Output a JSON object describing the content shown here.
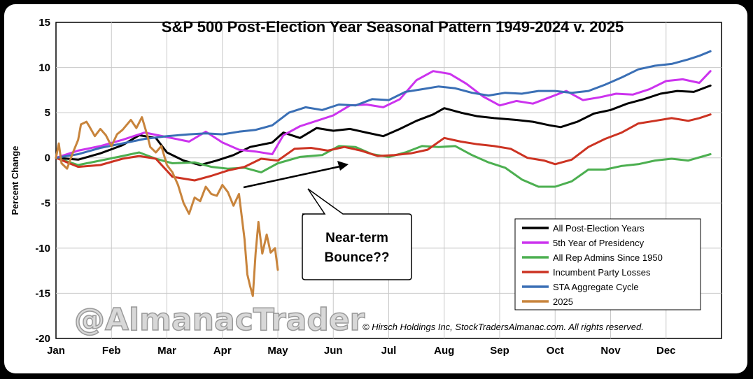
{
  "chart_data": {
    "type": "line",
    "title": "S&P 500 Post-Election Year Seasonal Pattern 1949-2024 v. 2025",
    "ylabel": "Percent Change",
    "xlabel": "",
    "ylim": [
      -20,
      15
    ],
    "yticks": [
      "15",
      "10",
      "5",
      "0",
      "-5",
      "-10",
      "-15",
      "-20"
    ],
    "xticks": [
      "Jan",
      "Feb",
      "Mar",
      "Apr",
      "May",
      "Jun",
      "Jul",
      "Aug",
      "Sep",
      "Oct",
      "Nov",
      "Dec"
    ],
    "grid": true,
    "legend_position": "bottom-right",
    "series": [
      {
        "name": "All Post-Election Years",
        "color": "#000000",
        "points": [
          [
            0,
            0
          ],
          [
            0.4,
            -0.2
          ],
          [
            0.8,
            0.5
          ],
          [
            1.2,
            1.4
          ],
          [
            1.5,
            2.5
          ],
          [
            1.8,
            2.2
          ],
          [
            2.0,
            0.6
          ],
          [
            2.3,
            -0.3
          ],
          [
            2.6,
            -0.8
          ],
          [
            2.9,
            -0.3
          ],
          [
            3.2,
            0.3
          ],
          [
            3.5,
            1.2
          ],
          [
            3.9,
            1.7
          ],
          [
            4.1,
            2.8
          ],
          [
            4.4,
            2.2
          ],
          [
            4.7,
            3.3
          ],
          [
            5.0,
            3.0
          ],
          [
            5.3,
            3.2
          ],
          [
            5.6,
            2.8
          ],
          [
            5.9,
            2.4
          ],
          [
            6.2,
            3.2
          ],
          [
            6.5,
            4.1
          ],
          [
            6.8,
            4.8
          ],
          [
            7.0,
            5.5
          ],
          [
            7.3,
            5.0
          ],
          [
            7.6,
            4.6
          ],
          [
            7.9,
            4.4
          ],
          [
            8.3,
            4.2
          ],
          [
            8.6,
            4.0
          ],
          [
            8.9,
            3.6
          ],
          [
            9.1,
            3.4
          ],
          [
            9.4,
            4.0
          ],
          [
            9.7,
            4.9
          ],
          [
            10.0,
            5.3
          ],
          [
            10.3,
            6.0
          ],
          [
            10.6,
            6.5
          ],
          [
            10.9,
            7.1
          ],
          [
            11.2,
            7.4
          ],
          [
            11.5,
            7.3
          ],
          [
            11.8,
            8.0
          ]
        ]
      },
      {
        "name": "5th Year of Presidency",
        "color": "#cc33ee",
        "points": [
          [
            0,
            0
          ],
          [
            0.4,
            0.8
          ],
          [
            0.8,
            1.3
          ],
          [
            1.2,
            2.0
          ],
          [
            1.6,
            2.8
          ],
          [
            2.0,
            2.3
          ],
          [
            2.4,
            1.8
          ],
          [
            2.7,
            2.9
          ],
          [
            3.0,
            1.7
          ],
          [
            3.3,
            0.9
          ],
          [
            3.6,
            0.7
          ],
          [
            3.9,
            0.4
          ],
          [
            4.1,
            2.5
          ],
          [
            4.4,
            3.5
          ],
          [
            4.7,
            4.1
          ],
          [
            5.0,
            4.7
          ],
          [
            5.3,
            5.8
          ],
          [
            5.6,
            5.9
          ],
          [
            5.9,
            5.6
          ],
          [
            6.2,
            6.5
          ],
          [
            6.5,
            8.6
          ],
          [
            6.8,
            9.6
          ],
          [
            7.1,
            9.3
          ],
          [
            7.4,
            8.2
          ],
          [
            7.7,
            6.8
          ],
          [
            8.0,
            5.8
          ],
          [
            8.3,
            6.3
          ],
          [
            8.6,
            6.0
          ],
          [
            8.9,
            6.7
          ],
          [
            9.2,
            7.4
          ],
          [
            9.5,
            6.4
          ],
          [
            9.8,
            6.7
          ],
          [
            10.1,
            7.1
          ],
          [
            10.4,
            7.0
          ],
          [
            10.7,
            7.6
          ],
          [
            11.0,
            8.5
          ],
          [
            11.3,
            8.7
          ],
          [
            11.6,
            8.3
          ],
          [
            11.8,
            9.6
          ]
        ]
      },
      {
        "name": "All Rep Admins Since 1950",
        "color": "#4caf50",
        "points": [
          [
            0,
            0
          ],
          [
            0.4,
            -0.8
          ],
          [
            0.8,
            -0.3
          ],
          [
            1.2,
            0.2
          ],
          [
            1.5,
            0.6
          ],
          [
            1.8,
            -0.1
          ],
          [
            2.1,
            -0.6
          ],
          [
            2.5,
            -0.5
          ],
          [
            2.8,
            -1.0
          ],
          [
            3.1,
            -1.2
          ],
          [
            3.4,
            -1.1
          ],
          [
            3.7,
            -1.6
          ],
          [
            4.0,
            -0.6
          ],
          [
            4.4,
            0.1
          ],
          [
            4.8,
            0.3
          ],
          [
            5.1,
            1.3
          ],
          [
            5.4,
            1.2
          ],
          [
            5.7,
            0.4
          ],
          [
            6.0,
            0.1
          ],
          [
            6.3,
            0.6
          ],
          [
            6.6,
            1.3
          ],
          [
            6.9,
            1.2
          ],
          [
            7.2,
            1.3
          ],
          [
            7.5,
            0.3
          ],
          [
            7.8,
            -0.5
          ],
          [
            8.1,
            -1.1
          ],
          [
            8.4,
            -2.4
          ],
          [
            8.7,
            -3.2
          ],
          [
            9.0,
            -3.2
          ],
          [
            9.3,
            -2.6
          ],
          [
            9.6,
            -1.3
          ],
          [
            9.9,
            -1.3
          ],
          [
            10.2,
            -0.9
          ],
          [
            10.5,
            -0.7
          ],
          [
            10.8,
            -0.3
          ],
          [
            11.1,
            -0.1
          ],
          [
            11.4,
            -0.3
          ],
          [
            11.8,
            0.4
          ]
        ]
      },
      {
        "name": "Incumbent Party Losses",
        "color": "#cc3322",
        "points": [
          [
            0,
            0
          ],
          [
            0.4,
            -1.0
          ],
          [
            0.8,
            -0.8
          ],
          [
            1.2,
            -0.1
          ],
          [
            1.5,
            0.2
          ],
          [
            1.8,
            -0.1
          ],
          [
            2.1,
            -2.1
          ],
          [
            2.5,
            -2.5
          ],
          [
            2.8,
            -2.0
          ],
          [
            3.1,
            -1.4
          ],
          [
            3.4,
            -1.0
          ],
          [
            3.7,
            -0.1
          ],
          [
            4.0,
            -0.3
          ],
          [
            4.3,
            1.0
          ],
          [
            4.6,
            1.1
          ],
          [
            4.9,
            0.8
          ],
          [
            5.2,
            1.2
          ],
          [
            5.5,
            0.8
          ],
          [
            5.8,
            0.2
          ],
          [
            6.1,
            0.3
          ],
          [
            6.4,
            0.5
          ],
          [
            6.7,
            0.9
          ],
          [
            7.0,
            2.2
          ],
          [
            7.3,
            1.8
          ],
          [
            7.6,
            1.5
          ],
          [
            7.9,
            1.3
          ],
          [
            8.2,
            1.0
          ],
          [
            8.5,
            0.0
          ],
          [
            8.8,
            -0.3
          ],
          [
            9.0,
            -0.7
          ],
          [
            9.3,
            -0.2
          ],
          [
            9.6,
            1.2
          ],
          [
            9.9,
            2.1
          ],
          [
            10.2,
            2.8
          ],
          [
            10.5,
            3.8
          ],
          [
            10.8,
            4.1
          ],
          [
            11.1,
            4.4
          ],
          [
            11.4,
            4.1
          ],
          [
            11.6,
            4.4
          ],
          [
            11.8,
            4.8
          ]
        ]
      },
      {
        "name": "STA Aggregate Cycle",
        "color": "#3a6fb5",
        "points": [
          [
            0,
            0
          ],
          [
            0.4,
            0.4
          ],
          [
            0.8,
            1.1
          ],
          [
            1.2,
            1.6
          ],
          [
            1.6,
            2.1
          ],
          [
            2.0,
            2.4
          ],
          [
            2.4,
            2.6
          ],
          [
            2.7,
            2.7
          ],
          [
            3.0,
            2.6
          ],
          [
            3.3,
            2.9
          ],
          [
            3.6,
            3.1
          ],
          [
            3.9,
            3.6
          ],
          [
            4.2,
            5.0
          ],
          [
            4.5,
            5.6
          ],
          [
            4.8,
            5.3
          ],
          [
            5.1,
            5.9
          ],
          [
            5.4,
            5.8
          ],
          [
            5.7,
            6.5
          ],
          [
            6.0,
            6.4
          ],
          [
            6.3,
            7.3
          ],
          [
            6.6,
            7.6
          ],
          [
            6.9,
            7.9
          ],
          [
            7.2,
            7.7
          ],
          [
            7.5,
            7.2
          ],
          [
            7.8,
            6.9
          ],
          [
            8.1,
            7.2
          ],
          [
            8.4,
            7.1
          ],
          [
            8.7,
            7.4
          ],
          [
            9.0,
            7.4
          ],
          [
            9.3,
            7.2
          ],
          [
            9.6,
            7.4
          ],
          [
            9.9,
            8.1
          ],
          [
            10.2,
            8.9
          ],
          [
            10.5,
            9.8
          ],
          [
            10.8,
            10.2
          ],
          [
            11.1,
            10.4
          ],
          [
            11.4,
            10.9
          ],
          [
            11.6,
            11.3
          ],
          [
            11.8,
            11.8
          ]
        ]
      },
      {
        "name": "2025",
        "color": "#c8843c",
        "points": [
          [
            0,
            0
          ],
          [
            0.05,
            1.6
          ],
          [
            0.1,
            -0.6
          ],
          [
            0.2,
            -1.2
          ],
          [
            0.3,
            0.5
          ],
          [
            0.4,
            2.0
          ],
          [
            0.45,
            3.7
          ],
          [
            0.55,
            4.0
          ],
          [
            0.6,
            3.5
          ],
          [
            0.7,
            2.4
          ],
          [
            0.8,
            3.2
          ],
          [
            0.9,
            2.5
          ],
          [
            1.0,
            1.3
          ],
          [
            1.1,
            2.6
          ],
          [
            1.2,
            3.1
          ],
          [
            1.35,
            4.2
          ],
          [
            1.45,
            3.3
          ],
          [
            1.55,
            4.5
          ],
          [
            1.65,
            2.4
          ],
          [
            1.7,
            1.2
          ],
          [
            1.8,
            0.6
          ],
          [
            1.9,
            1.3
          ],
          [
            2.0,
            -0.8
          ],
          [
            2.1,
            -1.6
          ],
          [
            2.2,
            -3.0
          ],
          [
            2.3,
            -5.0
          ],
          [
            2.4,
            -6.2
          ],
          [
            2.5,
            -4.4
          ],
          [
            2.6,
            -4.8
          ],
          [
            2.7,
            -3.2
          ],
          [
            2.8,
            -4.0
          ],
          [
            2.9,
            -4.2
          ],
          [
            3.0,
            -3.0
          ],
          [
            3.1,
            -3.8
          ],
          [
            3.2,
            -5.3
          ],
          [
            3.3,
            -4.0
          ],
          [
            3.4,
            -9.0
          ],
          [
            3.45,
            -12.9
          ],
          [
            3.5,
            -14.2
          ],
          [
            3.55,
            -15.3
          ],
          [
            3.6,
            -10.5
          ],
          [
            3.65,
            -7.1
          ],
          [
            3.72,
            -10.6
          ],
          [
            3.8,
            -8.5
          ],
          [
            3.87,
            -10.5
          ],
          [
            3.95,
            -10.0
          ],
          [
            4.0,
            -12.4
          ]
        ]
      }
    ],
    "annotations": {
      "callout": [
        "Near-term",
        "Bounce??"
      ],
      "watermark": "@AlmanacTrader",
      "copyright": "© Hirsch Holdings Inc, StockTradersAlmanac.com. All rights reserved."
    }
  }
}
